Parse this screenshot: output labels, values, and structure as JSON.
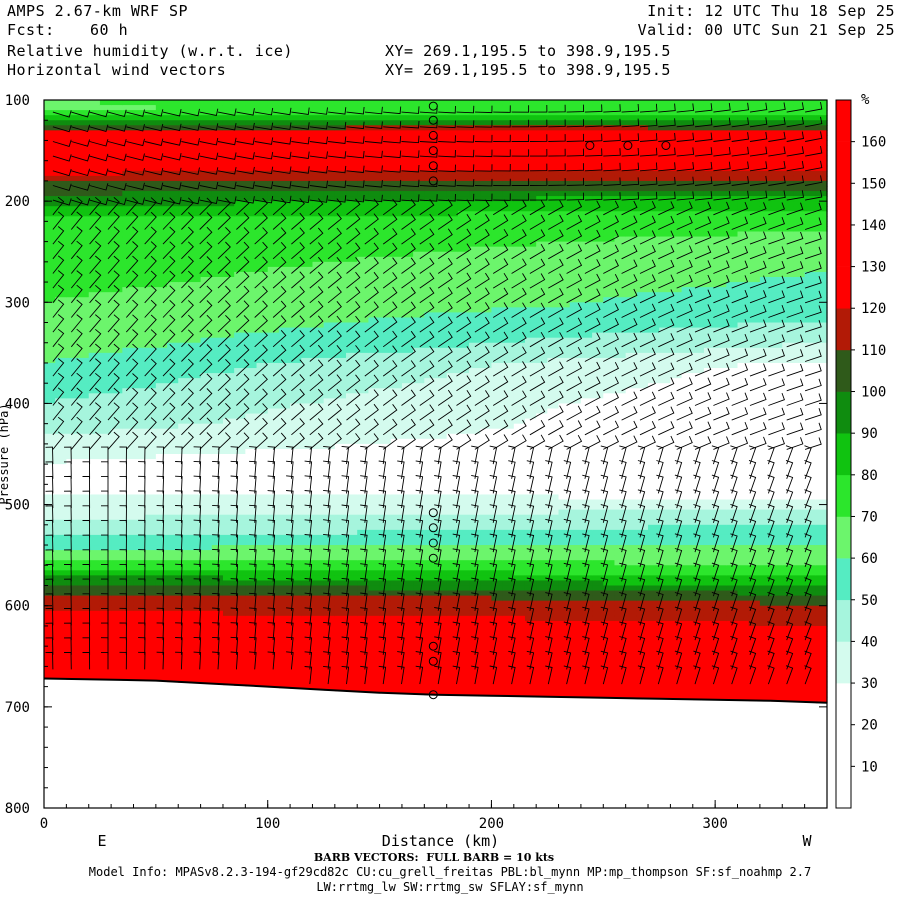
{
  "header": {
    "model": "AMPS 2.67-km WRF SP",
    "fcst_label": "Fcst:",
    "fcst_value": "60 h",
    "field1": "Relative humidity (w.r.t. ice)",
    "field2": "Horizontal wind vectors",
    "init": "Init: 12 UTC Thu 18 Sep 25",
    "valid": "Valid: 00 UTC Sun 21 Sep 25",
    "xy1": "XY= 269.1,195.5 to 398.9,195.5",
    "xy2": "XY= 269.1,195.5 to 398.9,195.5"
  },
  "footer": {
    "barb_note": "BARB VECTORS:  FULL BARB = 10 kts",
    "model_info": "Model Info: MPASv8.2.3-194-gf29cd82c CU:cu_grell_freitas PBL:bl_mynn MP:mp_thompson SF:sf_noahmp 2.7",
    "model_info2": "LW:rrtmg_lw SW:rrtmg_sw SFLAY:sf_mynn"
  },
  "chart_data": {
    "type": "heatmap",
    "title": "Relative humidity (w.r.t. ice) and horizontal wind vectors cross-section",
    "xlabel": "Distance (km)",
    "ylabel": "Pressure (hPa)",
    "xlim": [
      0,
      350
    ],
    "ylim": [
      800,
      100
    ],
    "x_ticks": [
      0,
      100,
      200,
      300
    ],
    "y_ticks": [
      100,
      200,
      300,
      400,
      500,
      600,
      700,
      800
    ],
    "x_end_labels": {
      "left": "E",
      "right": "W"
    },
    "colorbar": {
      "unit": "%",
      "levels": [
        10,
        20,
        30,
        40,
        50,
        60,
        70,
        80,
        90,
        100,
        110,
        120,
        130,
        140,
        150,
        160
      ],
      "colors": [
        "#ffffff",
        "#ffffff",
        "#ffffff",
        "#d4fbee",
        "#a6f5dd",
        "#55ecc2",
        "#6cf56c",
        "#2ce62c",
        "#10c310",
        "#0f8c0f",
        "#2f5a1a",
        "#b21a06",
        "#ff0000",
        "#ff0000",
        "#ff0000",
        "#ff0000",
        "#ff0000"
      ]
    },
    "rh_profile_left": [
      {
        "p": 100,
        "rh": 70
      },
      {
        "p": 110,
        "rh": 68
      },
      {
        "p": 120,
        "rh": 85
      },
      {
        "p": 128,
        "rh": 105
      },
      {
        "p": 135,
        "rh": 130
      },
      {
        "p": 160,
        "rh": 135
      },
      {
        "p": 182,
        "rh": 110
      },
      {
        "p": 200,
        "rh": 95
      },
      {
        "p": 215,
        "rh": 80
      },
      {
        "p": 260,
        "rh": 75
      },
      {
        "p": 300,
        "rh": 70
      },
      {
        "p": 340,
        "rh": 65
      },
      {
        "p": 380,
        "rh": 55
      },
      {
        "p": 420,
        "rh": 45
      },
      {
        "p": 450,
        "rh": 32
      },
      {
        "p": 480,
        "rh": 25
      },
      {
        "p": 505,
        "rh": 35
      },
      {
        "p": 530,
        "rh": 48
      },
      {
        "p": 560,
        "rh": 75
      },
      {
        "p": 575,
        "rh": 95
      },
      {
        "p": 590,
        "rh": 112
      },
      {
        "p": 615,
        "rh": 125
      },
      {
        "p": 640,
        "rh": 135
      },
      {
        "p": 670,
        "rh": 140
      }
    ],
    "rh_profile_right": [
      {
        "p": 100,
        "rh": 75
      },
      {
        "p": 115,
        "rh": 85
      },
      {
        "p": 122,
        "rh": 105
      },
      {
        "p": 128,
        "rh": 130
      },
      {
        "p": 155,
        "rh": 132
      },
      {
        "p": 175,
        "rh": 110
      },
      {
        "p": 195,
        "rh": 85
      },
      {
        "p": 230,
        "rh": 68
      },
      {
        "p": 265,
        "rh": 60
      },
      {
        "p": 300,
        "rh": 55
      },
      {
        "p": 325,
        "rh": 45
      },
      {
        "p": 345,
        "rh": 35
      },
      {
        "p": 360,
        "rh": 25
      },
      {
        "p": 400,
        "rh": 20
      },
      {
        "p": 480,
        "rh": 22
      },
      {
        "p": 495,
        "rh": 35
      },
      {
        "p": 515,
        "rh": 50
      },
      {
        "p": 540,
        "rh": 62
      },
      {
        "p": 560,
        "rh": 72
      },
      {
        "p": 575,
        "rh": 88
      },
      {
        "p": 590,
        "rh": 108
      },
      {
        "p": 610,
        "rh": 118
      },
      {
        "p": 640,
        "rh": 132
      },
      {
        "p": 695,
        "rh": 135
      }
    ],
    "terrain": [
      {
        "x": 0,
        "p": 672
      },
      {
        "x": 25,
        "p": 673
      },
      {
        "x": 50,
        "p": 674
      },
      {
        "x": 75,
        "p": 677
      },
      {
        "x": 100,
        "p": 680
      },
      {
        "x": 125,
        "p": 683
      },
      {
        "x": 150,
        "p": 686
      },
      {
        "x": 175,
        "p": 688
      },
      {
        "x": 200,
        "p": 689
      },
      {
        "x": 225,
        "p": 690
      },
      {
        "x": 250,
        "p": 691
      },
      {
        "x": 275,
        "p": 692
      },
      {
        "x": 300,
        "p": 693
      },
      {
        "x": 325,
        "p": 694
      },
      {
        "x": 350,
        "p": 696
      }
    ],
    "calm_markers": [
      {
        "x": 174,
        "p": 106
      },
      {
        "x": 174,
        "p": 120
      },
      {
        "x": 174,
        "p": 135
      },
      {
        "x": 174,
        "p": 150
      },
      {
        "x": 174,
        "p": 165
      },
      {
        "x": 174,
        "p": 180
      },
      {
        "x": 244,
        "p": 145
      },
      {
        "x": 261,
        "p": 145
      },
      {
        "x": 278,
        "p": 145
      },
      {
        "x": 174,
        "p": 508
      },
      {
        "x": 174,
        "p": 523
      },
      {
        "x": 174,
        "p": 538
      },
      {
        "x": 174,
        "p": 553
      },
      {
        "x": 174,
        "p": 640
      },
      {
        "x": 174,
        "p": 655
      },
      {
        "x": 174,
        "p": 688
      }
    ]
  }
}
